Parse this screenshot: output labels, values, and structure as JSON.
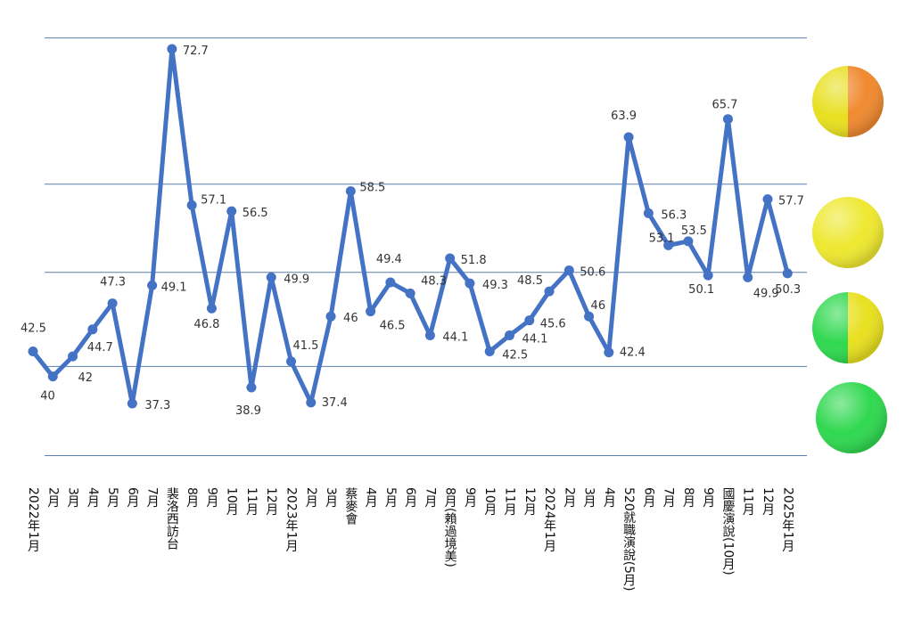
{
  "chart_data": {
    "type": "line",
    "title": "",
    "xlabel": "",
    "ylabel": "",
    "ylim": [
      32,
      74
    ],
    "grid": true,
    "gridlines": [
      32.1,
      41.0,
      50.4,
      59.2,
      73.8
    ],
    "categories": [
      "2022年1月",
      "2月",
      "3月",
      "4月",
      "5月",
      "6月",
      "7月",
      "裴洛西訪台",
      "8月",
      "9月",
      "10月",
      "11月",
      "12月",
      "2023年1月",
      "2月",
      "3月",
      "蔡麥會",
      "4月",
      "5月",
      "6月",
      "7月",
      "8月(賴過境美)",
      "9月",
      "10月",
      "11月",
      "12月",
      "2024年1月",
      "2月",
      "3月",
      "4月",
      "520就職演說(5月)",
      "6月",
      "7月",
      "8月",
      "9月",
      "國慶演說(10月)",
      "11月",
      "12月",
      "2025年1月"
    ],
    "values": [
      42.5,
      40,
      42,
      44.7,
      47.3,
      37.3,
      49.1,
      72.7,
      57.1,
      46.8,
      56.5,
      38.9,
      49.9,
      41.5,
      37.4,
      46,
      58.5,
      46.5,
      49.4,
      48.3,
      44.1,
      51.8,
      49.3,
      42.5,
      44.1,
      45.6,
      48.5,
      50.6,
      46,
      42.4,
      63.9,
      56.3,
      53.1,
      53.5,
      50.1,
      65.7,
      49.9,
      57.7,
      50.3
    ],
    "series_color": "#4472C4",
    "gridline_color": "#5B7FAF",
    "indicators": [
      {
        "name": "orange-yellow",
        "colors": [
          "#E8E020",
          "#F08A30"
        ]
      },
      {
        "name": "yellow",
        "colors": [
          "#EEE830",
          "#EEE830"
        ]
      },
      {
        "name": "green-yellow",
        "colors": [
          "#30D850",
          "#E8E020"
        ]
      },
      {
        "name": "green",
        "colors": [
          "#30D850",
          "#30D850"
        ]
      }
    ]
  }
}
